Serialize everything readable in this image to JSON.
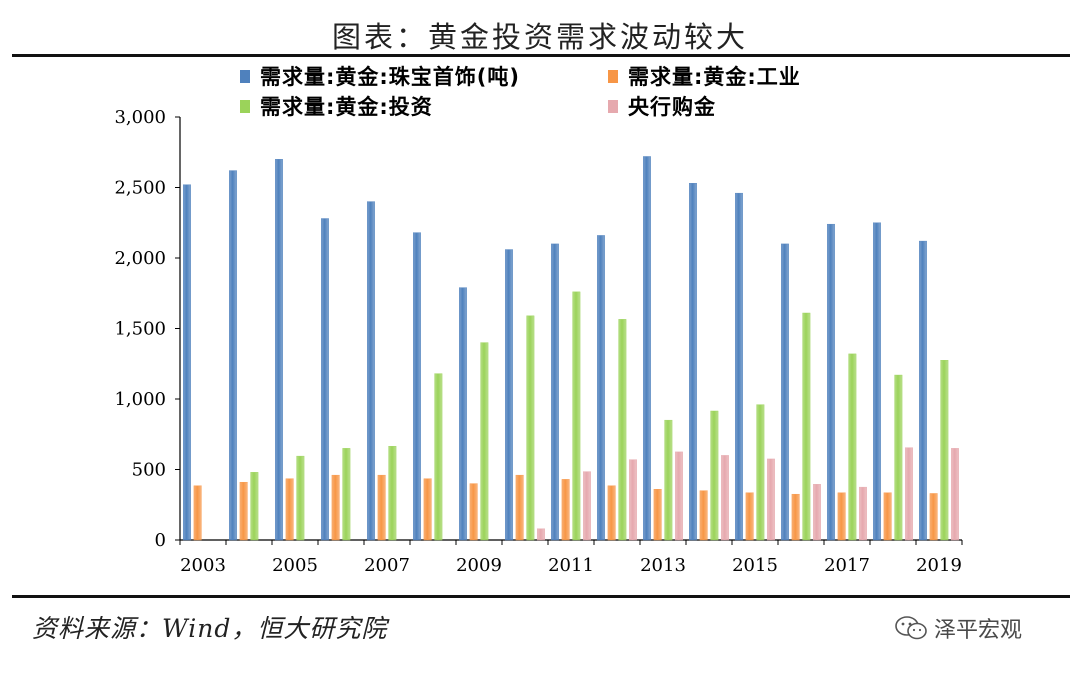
{
  "title": "图表：黄金投资需求波动较大",
  "source": "资料来源：Wind，恒大研究院",
  "watermark": "泽平宏观",
  "chart_data": {
    "type": "bar",
    "categories": [
      "2003",
      "2004",
      "2005",
      "2006",
      "2007",
      "2008",
      "2009",
      "2010",
      "2011",
      "2012",
      "2013",
      "2014",
      "2015",
      "2016",
      "2017",
      "2018",
      "2019"
    ],
    "x_tick_labels": [
      "2003",
      "2005",
      "2007",
      "2009",
      "2011",
      "2013",
      "2015",
      "2017",
      "2019"
    ],
    "ylim": [
      0,
      3000
    ],
    "yticks": [
      "0",
      "500",
      "1,000",
      "1,500",
      "2,000",
      "2,500",
      "3,000"
    ],
    "ytick_values": [
      0,
      500,
      1000,
      1500,
      2000,
      2500,
      3000
    ],
    "grid": false,
    "legend_position": "top",
    "series": [
      {
        "name": "需求量:黄金:珠宝首饰(吨)",
        "color": "#4F81BD",
        "values": [
          2520,
          2620,
          2700,
          2280,
          2400,
          2180,
          1790,
          2060,
          2100,
          2160,
          2720,
          2530,
          2460,
          2100,
          2240,
          2250,
          2120
        ]
      },
      {
        "name": "需求量:黄金:工业",
        "color": "#F79646",
        "values": [
          385,
          410,
          435,
          460,
          460,
          435,
          400,
          460,
          430,
          385,
          360,
          350,
          335,
          325,
          335,
          335,
          330
        ]
      },
      {
        "name": "需求量:黄金:投资",
        "color": "#9BD35A",
        "values": [
          0,
          480,
          595,
          650,
          665,
          1180,
          1400,
          1590,
          1760,
          1565,
          850,
          915,
          960,
          1610,
          1320,
          1170,
          1275
        ]
      },
      {
        "name": "央行购金",
        "color": "#E6A9AE",
        "values": [
          0,
          0,
          0,
          0,
          0,
          0,
          0,
          80,
          485,
          570,
          625,
          600,
          575,
          395,
          375,
          655,
          650
        ]
      }
    ]
  }
}
